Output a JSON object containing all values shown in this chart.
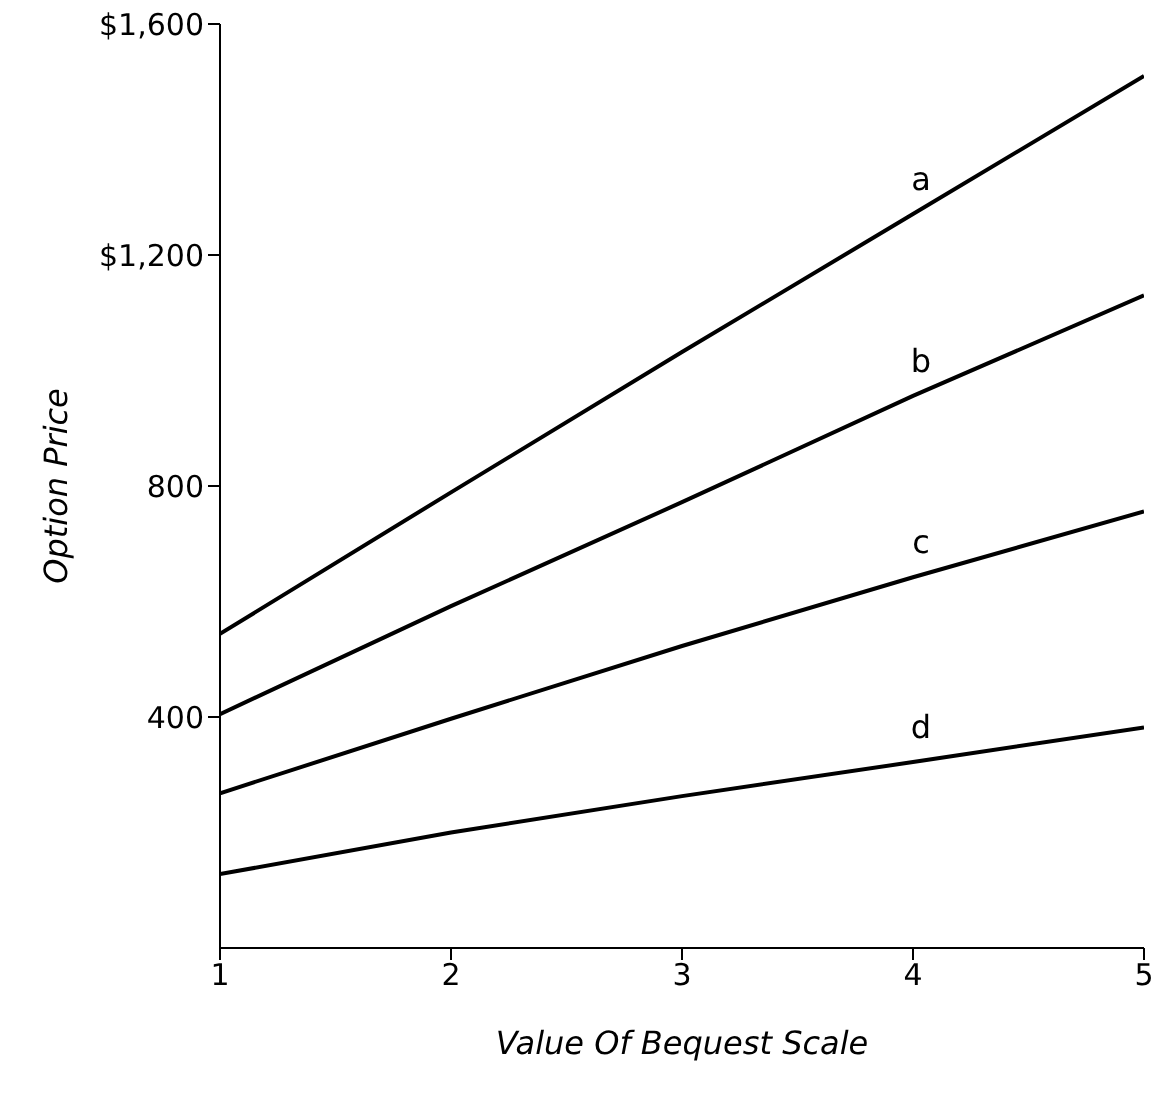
{
  "chart_data": {
    "type": "line",
    "xlabel": "Value Of Bequest Scale",
    "ylabel": "Option Price",
    "x": [
      1,
      2,
      3,
      4,
      5
    ],
    "xlim": [
      1,
      5
    ],
    "xticks": [
      1,
      2,
      3,
      4,
      5
    ],
    "ylim": [
      0,
      1600
    ],
    "yticks": [
      {
        "value": 400,
        "label": "400"
      },
      {
        "value": 800,
        "label": "800"
      },
      {
        "value": 1200,
        "label": "$1,200"
      },
      {
        "value": 1600,
        "label": "$1,600"
      }
    ],
    "series": [
      {
        "name": "a",
        "color": "#000000",
        "values": [
          544,
          789,
          1032,
          1271,
          1510
        ]
      },
      {
        "name": "b",
        "color": "#000000",
        "values": [
          405,
          592,
          772,
          956,
          1130
        ]
      },
      {
        "name": "c",
        "color": "#000000",
        "values": [
          268,
          397,
          523,
          642,
          756
        ]
      },
      {
        "name": "d",
        "color": "#000000",
        "values": [
          128,
          200,
          263,
          322,
          382
        ]
      }
    ]
  }
}
